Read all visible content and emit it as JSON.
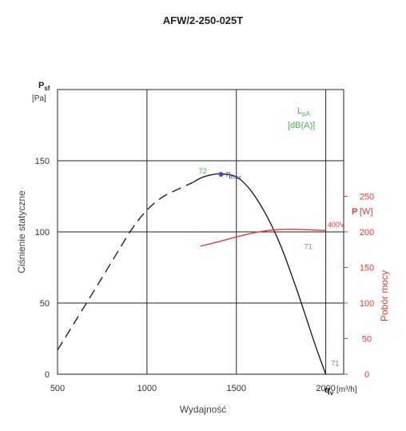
{
  "chart_data": {
    "type": "line",
    "title": "AFW/2-250-025T",
    "xlabel": "Wydajność",
    "x_axis_symbol": "q",
    "x_axis_symbol_sub": "v",
    "x_axis_unit": "[m³/h]",
    "xlim": [
      500,
      2100
    ],
    "x_ticks": [
      "500",
      "1000",
      "1500",
      "2000"
    ],
    "ylabel": "Ciśnienie statyczne",
    "y_axis_symbol": "P",
    "y_axis_symbol_sub": "sf",
    "y_axis_unit": "[Pa]",
    "ylim": [
      0,
      200
    ],
    "y_ticks": [
      "0",
      "50",
      "100",
      "150"
    ],
    "y2label": "Pobór mocy",
    "y2_axis_symbol": "P",
    "y2_axis_unit": "[W]",
    "y2lim": [
      0,
      250
    ],
    "y2_ticks": [
      "0",
      "50",
      "100",
      "150",
      "200",
      "250"
    ],
    "grid": true,
    "noise_legend": {
      "symbol": "L",
      "sub": "pA",
      "unit": "[dB(A)]"
    },
    "series": [
      {
        "axis": "left",
        "style": "dashed",
        "color": "#222222",
        "x": [
          500,
          760,
          1000,
          1260
        ],
        "y": [
          17,
          70,
          120,
          135
        ]
      },
      {
        "axis": "left",
        "style": "solid",
        "color": "#222222",
        "x": [
          1260,
          1300,
          1350,
          1400,
          1450,
          1500,
          1550,
          1600,
          1650,
          1700,
          1750,
          1800,
          1850,
          1900,
          1950,
          2000
        ],
        "y": [
          135,
          138,
          140,
          141,
          140.5,
          139,
          134,
          126,
          116,
          104,
          90,
          73,
          55,
          36,
          17,
          0
        ]
      },
      {
        "name": "400V",
        "axis": "right",
        "style": "solid",
        "color": "#e53935",
        "x": [
          1300,
          1400,
          1500,
          1600,
          1700,
          1800,
          1900,
          2000
        ],
        "y": [
          180,
          186,
          193,
          199,
          203,
          204,
          203,
          202
        ]
      }
    ],
    "annotations": [
      {
        "text": "72",
        "x": 1290,
        "y": 141,
        "axis": "left",
        "color": "#4caf50"
      },
      {
        "text": "71",
        "x": 1880,
        "y": 88,
        "axis": "left",
        "color": "#4caf50"
      },
      {
        "text": "71",
        "x": 2030,
        "y": 6,
        "axis": "left",
        "color": "#4caf50"
      },
      {
        "text": "400V",
        "x": 2010,
        "y": 207,
        "axis": "right",
        "color": "#e53935"
      }
    ],
    "eta_max": {
      "x": 1450,
      "y": 141,
      "label": "η",
      "sub": "max"
    }
  }
}
